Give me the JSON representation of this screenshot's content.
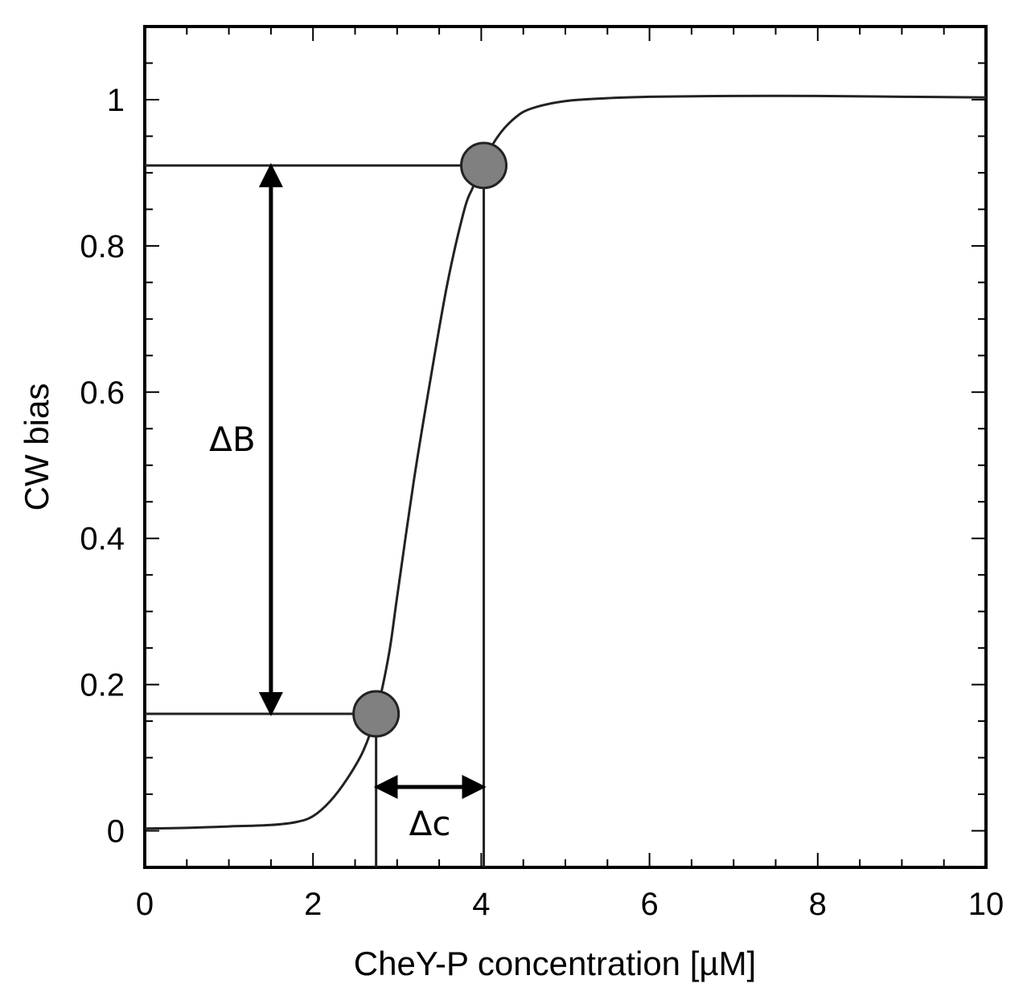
{
  "chart_data": {
    "type": "line",
    "xlabel": "CheY-P  concentration  [µM]",
    "ylabel": "CW bias",
    "xlim": [
      0,
      10
    ],
    "ylim": [
      -0.05,
      1.1
    ],
    "x_ticks": [
      0,
      2,
      4,
      6,
      8,
      10
    ],
    "x_tick_labels": [
      "0",
      "2",
      "4",
      "6",
      "8",
      "10"
    ],
    "y_ticks": [
      0,
      0.2,
      0.4,
      0.6,
      0.8,
      1
    ],
    "y_tick_labels": [
      "0",
      "0.2",
      "0.4",
      "0.6",
      "0.8",
      "1"
    ],
    "grid": false,
    "series": [
      {
        "color": "#222222",
        "x": [
          0,
          0.5,
          1.0,
          1.5,
          1.8,
          2.0,
          2.2,
          2.4,
          2.6,
          2.75,
          2.9,
          3.0,
          3.2,
          3.4,
          3.6,
          3.8,
          3.9,
          4.0,
          4.2,
          4.4,
          4.6,
          5.0,
          5.5,
          6.0,
          7.0,
          8.0,
          9.0,
          10.0
        ],
        "y": [
          0.003,
          0.004,
          0.006,
          0.008,
          0.012,
          0.02,
          0.04,
          0.07,
          0.11,
          0.16,
          0.24,
          0.32,
          0.48,
          0.62,
          0.75,
          0.85,
          0.88,
          0.91,
          0.95,
          0.975,
          0.988,
          0.998,
          1.002,
          1.004,
          1.005,
          1.005,
          1.004,
          1.003
        ]
      }
    ],
    "highlight_points": [
      {
        "x": 2.75,
        "y": 0.16,
        "color": "#808080"
      },
      {
        "x": 4.03,
        "y": 0.91,
        "color": "#808080"
      }
    ],
    "annotations": [
      {
        "text": "ΔB",
        "type": "double-arrow-vertical",
        "x": 1.5,
        "y_from": 0.16,
        "y_to": 0.91
      },
      {
        "text": "Δc",
        "type": "double-arrow-horizontal",
        "y": 0.06,
        "x_from": 2.75,
        "x_to": 4.03
      }
    ]
  }
}
